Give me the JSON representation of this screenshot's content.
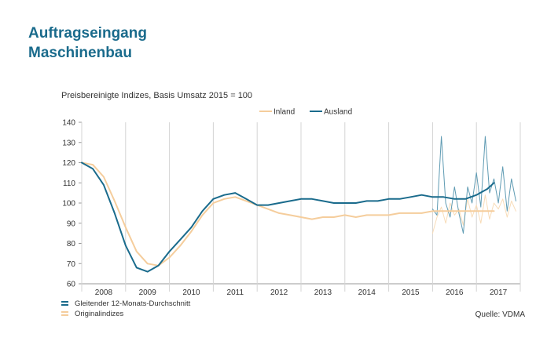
{
  "title_line1": "Auftragseingang",
  "title_line2": "Maschinenbau",
  "notes": {
    "smoothed": "Gleitender 12-Monats-Durchschnitt",
    "original": "Originalindizes"
  },
  "source": "Quelle: VDMA",
  "colors": {
    "inland": "#f5cd9c",
    "ausland": "#1a6b8c",
    "inland_raw": "#f8dcb8",
    "ausland_raw": "#5f9bb3",
    "title": "#1a6b8c",
    "grid": "#d4d4d4"
  },
  "chart_data": {
    "type": "line",
    "title": "Preisbereinigte Indizes, Basis Umsatz 2015 = 100",
    "xlabel": "",
    "ylabel": "",
    "ylim": [
      60,
      140
    ],
    "yticks": [
      60,
      70,
      80,
      90,
      100,
      110,
      120,
      130,
      140
    ],
    "xlim": [
      2007.5,
      2017.5
    ],
    "year_labels": [
      "2008",
      "2009",
      "2010",
      "2011",
      "2012",
      "2013",
      "2014",
      "2015",
      "2016",
      "2017"
    ],
    "grid": "vertical year dividers",
    "legend_position": "top-right",
    "series": [
      {
        "name": "Inland",
        "kind": "smoothed",
        "x": [
          2007.5,
          2007.75,
          2008.0,
          2008.25,
          2008.5,
          2008.75,
          2009.0,
          2009.25,
          2009.5,
          2009.75,
          2010.0,
          2010.25,
          2010.5,
          2010.75,
          2011.0,
          2011.25,
          2011.5,
          2011.75,
          2012.0,
          2012.25,
          2012.5,
          2012.75,
          2013.0,
          2013.25,
          2013.5,
          2013.75,
          2014.0,
          2014.25,
          2014.5,
          2014.75,
          2015.0,
          2015.25,
          2015.5,
          2015.75,
          2016.0,
          2016.25,
          2016.5,
          2016.75,
          2016.9
        ],
        "y": [
          120,
          119,
          113,
          101,
          88,
          76,
          70,
          69,
          73,
          79,
          86,
          94,
          100,
          102,
          103,
          101,
          99,
          97,
          95,
          94,
          93,
          92,
          93,
          93,
          94,
          93,
          94,
          94,
          94,
          95,
          95,
          95,
          96,
          96,
          96,
          96,
          96,
          96,
          96
        ]
      },
      {
        "name": "Ausland",
        "kind": "smoothed",
        "x": [
          2007.5,
          2007.75,
          2008.0,
          2008.25,
          2008.5,
          2008.75,
          2009.0,
          2009.25,
          2009.5,
          2009.75,
          2010.0,
          2010.25,
          2010.5,
          2010.75,
          2011.0,
          2011.25,
          2011.5,
          2011.75,
          2012.0,
          2012.25,
          2012.5,
          2012.75,
          2013.0,
          2013.25,
          2013.5,
          2013.75,
          2014.0,
          2014.25,
          2014.5,
          2014.75,
          2015.0,
          2015.25,
          2015.5,
          2015.75,
          2016.0,
          2016.25,
          2016.5,
          2016.75,
          2016.9
        ],
        "y": [
          120,
          117,
          109,
          95,
          79,
          68,
          66,
          69,
          76,
          82,
          88,
          96,
          102,
          104,
          105,
          102,
          99,
          99,
          100,
          101,
          102,
          102,
          101,
          100,
          100,
          100,
          101,
          101,
          102,
          102,
          103,
          104,
          103,
          103,
          102,
          102,
          104,
          107,
          110
        ]
      },
      {
        "name": "Inland",
        "kind": "original",
        "x": [
          2015.5,
          2015.6,
          2015.7,
          2015.8,
          2015.9,
          2016.0,
          2016.1,
          2016.2,
          2016.3,
          2016.4,
          2016.5,
          2016.6,
          2016.7,
          2016.8,
          2016.9,
          2017.0,
          2017.1,
          2017.2,
          2017.3,
          2017.4
        ],
        "y": [
          85,
          93,
          98,
          90,
          100,
          94,
          97,
          89,
          102,
          93,
          99,
          90,
          104,
          92,
          100,
          97,
          102,
          93,
          101,
          96
        ]
      },
      {
        "name": "Ausland",
        "kind": "original",
        "x": [
          2015.5,
          2015.6,
          2015.7,
          2015.8,
          2015.9,
          2016.0,
          2016.1,
          2016.2,
          2016.3,
          2016.4,
          2016.5,
          2016.6,
          2016.7,
          2016.8,
          2016.9,
          2017.0,
          2017.1,
          2017.2,
          2017.3,
          2017.4
        ],
        "y": [
          97,
          94,
          133,
          100,
          93,
          108,
          95,
          85,
          108,
          100,
          115,
          98,
          133,
          105,
          112,
          100,
          118,
          96,
          112,
          101
        ]
      }
    ]
  }
}
